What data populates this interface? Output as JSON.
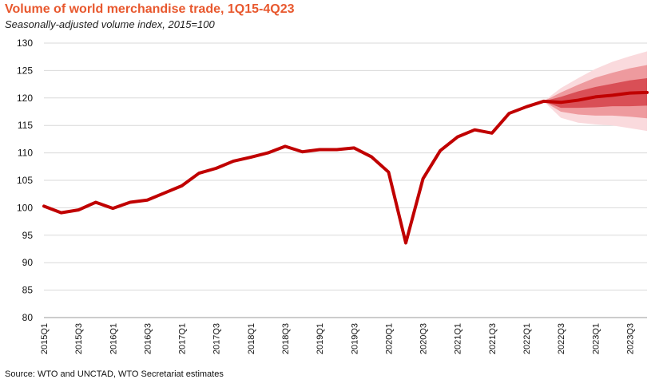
{
  "colors": {
    "title": "#E8582E",
    "line": "#C00000",
    "fan_outer": "#FADADD",
    "fan_mid": "#EE9A9E",
    "fan_inner": "#D94F56",
    "grid": "#D9D9D9"
  },
  "chart_data": {
    "type": "line",
    "title": "Volume of world merchandise trade, 1Q15-4Q23",
    "subtitle": "Seasonally-adjusted volume index, 2015=100",
    "source": "Source: WTO and UNCTAD, WTO Secretariat estimates",
    "ylim": [
      80,
      130
    ],
    "y_ticks": [
      80,
      85,
      90,
      95,
      100,
      105,
      110,
      115,
      120,
      125,
      130
    ],
    "grid": true,
    "x": [
      "2015Q1",
      "2015Q2",
      "2015Q3",
      "2015Q4",
      "2016Q1",
      "2016Q2",
      "2016Q3",
      "2016Q4",
      "2017Q1",
      "2017Q2",
      "2017Q3",
      "2017Q4",
      "2018Q1",
      "2018Q2",
      "2018Q3",
      "2018Q4",
      "2019Q1",
      "2019Q2",
      "2019Q3",
      "2019Q4",
      "2020Q1",
      "2020Q2",
      "2020Q3",
      "2020Q4",
      "2021Q1",
      "2021Q2",
      "2021Q3",
      "2021Q4",
      "2022Q1",
      "2022Q2",
      "2022Q3",
      "2022Q4",
      "2023Q1",
      "2023Q2",
      "2023Q3",
      "2023Q4"
    ],
    "x_tick_labels": [
      "2015Q1",
      "2015Q3",
      "2016Q1",
      "2016Q3",
      "2017Q1",
      "2017Q3",
      "2018Q1",
      "2018Q3",
      "2019Q1",
      "2019Q3",
      "2020Q1",
      "2020Q3",
      "2021Q1",
      "2021Q3",
      "2022Q1",
      "2022Q3",
      "2023Q1",
      "2023Q3"
    ],
    "series": [
      {
        "values": [
          100.3,
          99.1,
          99.6,
          101.0,
          99.9,
          101.0,
          101.4,
          102.7,
          104.0,
          106.3,
          107.2,
          108.5,
          109.2,
          110.0,
          111.2,
          110.2,
          110.6,
          110.6,
          110.9,
          109.3,
          106.5,
          93.6,
          105.3,
          110.4,
          112.9,
          114.2,
          113.6,
          117.2,
          118.4,
          119.4,
          119.2,
          119.6,
          120.2,
          120.5,
          120.9,
          121.0
        ]
      }
    ],
    "forecast_bands": {
      "start": "2022Q2",
      "x": [
        "2022Q2",
        "2022Q3",
        "2022Q4",
        "2023Q1",
        "2023Q2",
        "2023Q3",
        "2023Q4"
      ],
      "outer_upper": [
        119.4,
        121.8,
        123.6,
        125.3,
        126.6,
        127.6,
        128.5
      ],
      "outer_lower": [
        119.4,
        116.4,
        115.5,
        115.2,
        115.0,
        114.5,
        114.0
      ],
      "mid_upper": [
        119.4,
        121.0,
        122.4,
        123.7,
        124.6,
        125.4,
        126.0
      ],
      "mid_lower": [
        119.4,
        117.5,
        117.0,
        116.8,
        116.8,
        116.6,
        116.3
      ],
      "inner_upper": [
        119.4,
        120.2,
        121.2,
        122.0,
        122.6,
        123.2,
        123.6
      ],
      "inner_lower": [
        119.4,
        118.2,
        118.2,
        118.3,
        118.5,
        118.5,
        118.6
      ]
    }
  }
}
